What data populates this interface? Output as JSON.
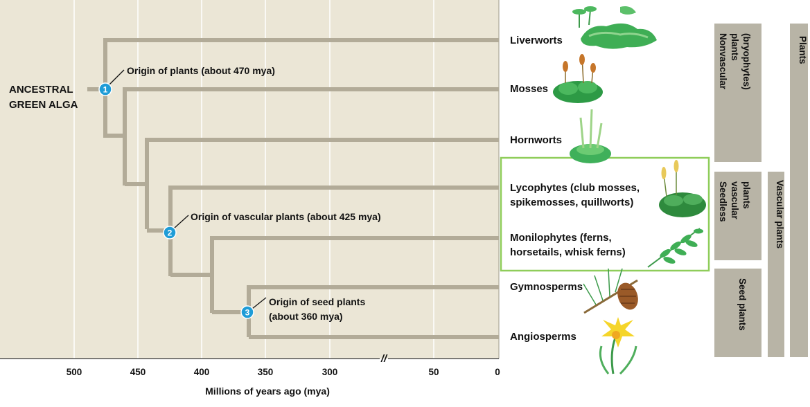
{
  "root_label": [
    "ANCESTRAL",
    "GREEN ALGA"
  ],
  "taxa": [
    {
      "id": "liverworts",
      "lines": [
        "Liverworts"
      ]
    },
    {
      "id": "mosses",
      "lines": [
        "Mosses"
      ]
    },
    {
      "id": "hornworts",
      "lines": [
        "Hornworts"
      ]
    },
    {
      "id": "lycophytes",
      "lines": [
        "Lycophytes (club mosses,",
        "spikemosses, quillworts)"
      ]
    },
    {
      "id": "monilophytes",
      "lines": [
        "Monilophytes (ferns,",
        "horsetails, whisk ferns)"
      ]
    },
    {
      "id": "gymnosperms",
      "lines": [
        "Gymnosperms"
      ]
    },
    {
      "id": "angiosperms",
      "lines": [
        "Angiosperms"
      ]
    }
  ],
  "origins": [
    {
      "number": "1",
      "lines": [
        "Origin of plants (about 470 mya)"
      ]
    },
    {
      "number": "2",
      "lines": [
        "Origin of vascular plants (about 425 mya)"
      ]
    },
    {
      "number": "3",
      "lines": [
        "Origin of seed plants",
        "(about 360 mya)"
      ]
    }
  ],
  "axis": {
    "title": "Millions of years ago (mya)",
    "ticks": [
      "500",
      "450",
      "400",
      "350",
      "300",
      "50",
      "0"
    ],
    "break_mark": "//"
  },
  "groups": [
    {
      "id": "nonvascular",
      "lines": [
        "Nonvascular",
        "plants",
        "(bryophytes)"
      ]
    },
    {
      "id": "seedless-vascular",
      "lines": [
        "Seedless",
        "vascular",
        "plants"
      ]
    },
    {
      "id": "seed-plants",
      "lines": [
        "Seed plants"
      ]
    },
    {
      "id": "vascular-plants",
      "lines": [
        "Vascular plants"
      ]
    },
    {
      "id": "plants",
      "lines": [
        "Plants"
      ]
    }
  ],
  "colors": {
    "panel": "#ebe6d6",
    "branch": "#b2ab98",
    "node": "#1e9cd7",
    "group_box": "#b8b4a6",
    "highlight_box": "#8fcd5a",
    "gridline": "#ffffff"
  },
  "icons": [
    "liverwort-icon",
    "moss-icon",
    "hornwort-icon",
    "club-moss-icon",
    "fern-icon",
    "pine-cone-icon",
    "daffodil-icon"
  ]
}
